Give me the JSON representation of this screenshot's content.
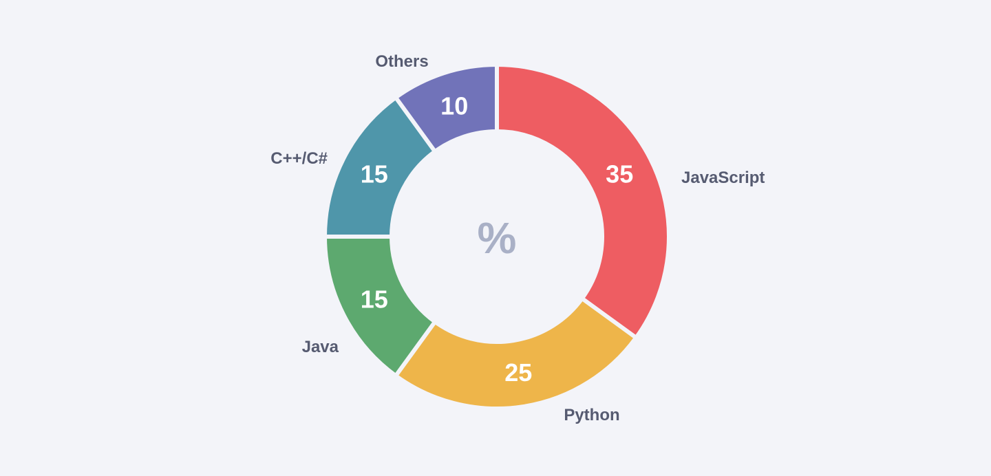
{
  "background": "#f3f4f9",
  "chart_data": {
    "type": "pie",
    "subtype": "donut",
    "title": "",
    "unit_symbol": "%",
    "total": 100,
    "start_angle_deg": 0,
    "direction": "clockwise",
    "legend": "none",
    "labels_position": "outside",
    "value_labels_position": "inside",
    "value_label_color": "#ffffff",
    "category_label_color": "#565b71",
    "center_symbol_color": "#a9b0c6",
    "slice_gap_color": "#f3f4f9",
    "series": [
      {
        "name": "javascript",
        "label": "JavaScript",
        "value": 35,
        "color": "#ee5d62"
      },
      {
        "name": "python",
        "label": "Python",
        "value": 25,
        "color": "#eeb54a"
      },
      {
        "name": "java",
        "label": "Java",
        "value": 15,
        "color": "#5da96f"
      },
      {
        "name": "cpp-csharp",
        "label": "C++/C#",
        "value": 15,
        "color": "#4f96aa"
      },
      {
        "name": "others",
        "label": "Others",
        "value": 10,
        "color": "#7173b9"
      }
    ]
  }
}
